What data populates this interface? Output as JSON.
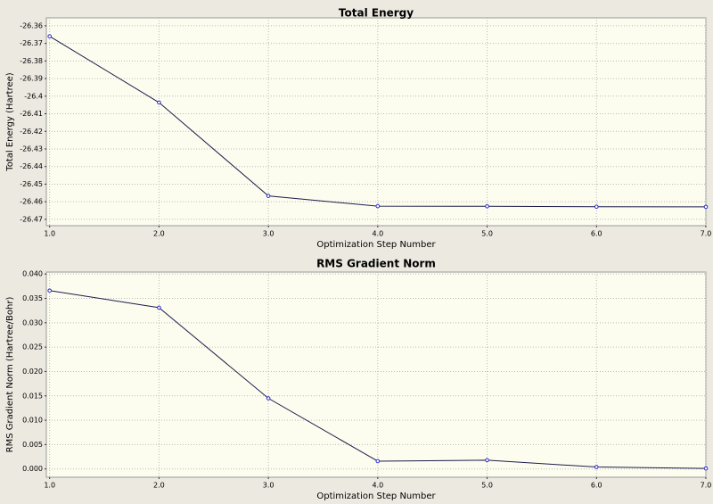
{
  "chart_data": [
    {
      "type": "line",
      "title": "Total Energy",
      "xlabel": "Optimization Step Number",
      "ylabel": "Total Energy (Hartree)",
      "x": [
        1,
        2,
        3,
        4,
        5,
        6,
        7
      ],
      "values": [
        -26.366,
        -26.4036,
        -26.4567,
        -26.4625,
        -26.4626,
        -26.4628,
        -26.4629
      ],
      "color": "#1c1c4c",
      "marker_color": "#2a2ad0",
      "grid": true,
      "xlim": [
        0.97,
        7.0
      ],
      "xticks": [
        {
          "value": 1,
          "label": "1.0"
        },
        {
          "value": 2,
          "label": "2.0"
        },
        {
          "value": 3,
          "label": "3.0"
        },
        {
          "value": 4,
          "label": "4.0"
        },
        {
          "value": 5,
          "label": "5.0"
        },
        {
          "value": 6,
          "label": "6.0"
        },
        {
          "value": 7,
          "label": "7.0"
        }
      ],
      "ylim": [
        -26.4736,
        -26.3555
      ],
      "yticks": [
        -26.36,
        -26.37,
        -26.38,
        -26.39,
        -26.4,
        -26.41,
        -26.42,
        -26.43,
        -26.44,
        -26.45,
        -26.46,
        -26.47
      ]
    },
    {
      "type": "line",
      "title": "RMS Gradient Norm",
      "xlabel": "Optimization Step Number",
      "ylabel": "RMS Gradient Norm (Hartree/Bohr)",
      "x": [
        1,
        2,
        3,
        4,
        5,
        6,
        7
      ],
      "values": [
        0.0366,
        0.0331,
        0.0145,
        0.0016,
        0.0018,
        0.0004,
        0.0001
      ],
      "color": "#1c1c4c",
      "marker_color": "#2a2ad0",
      "grid": true,
      "xlim": [
        0.97,
        7.0
      ],
      "xticks": [
        {
          "value": 1,
          "label": "1.0"
        },
        {
          "value": 2,
          "label": "2.0"
        },
        {
          "value": 3,
          "label": "3.0"
        },
        {
          "value": 4,
          "label": "4.0"
        },
        {
          "value": 5,
          "label": "5.0"
        },
        {
          "value": 6,
          "label": "6.0"
        },
        {
          "value": 7,
          "label": "7.0"
        }
      ],
      "ylim": [
        -0.0017,
        0.0404
      ],
      "yticks": [
        {
          "value": 0,
          "label": "0.000"
        },
        {
          "value": 0.005,
          "label": "0.005"
        },
        {
          "value": 0.01,
          "label": "0.010"
        },
        {
          "value": 0.015,
          "label": "0.015"
        },
        {
          "value": 0.02,
          "label": "0.020"
        },
        {
          "value": 0.025,
          "label": "0.025"
        },
        {
          "value": 0.03,
          "label": "0.030"
        },
        {
          "value": 0.035,
          "label": "0.035"
        },
        {
          "value": 0.04,
          "label": "0.040"
        }
      ]
    }
  ]
}
